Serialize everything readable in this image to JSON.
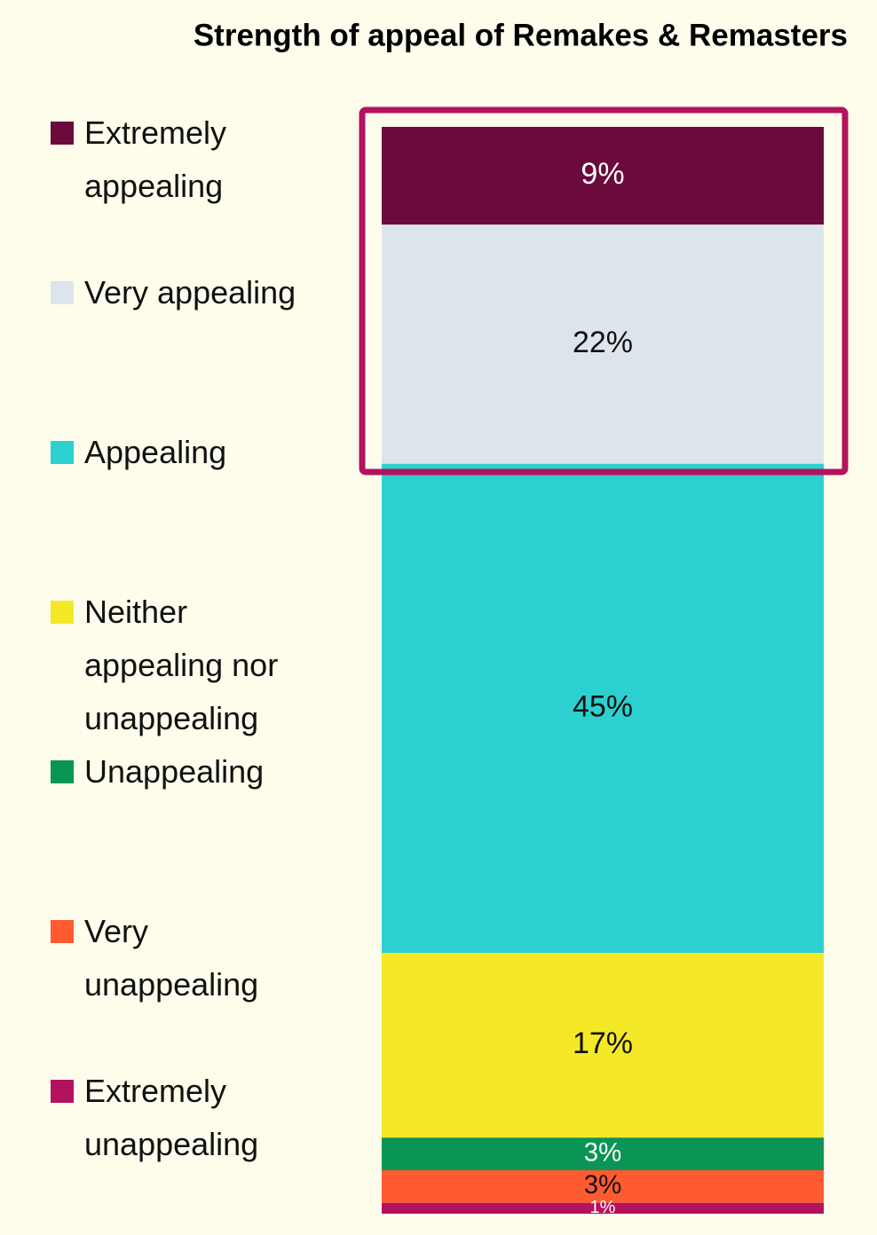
{
  "chart_data": {
    "type": "stacked-bar",
    "title": "Strength of appeal of Remakes & Remasters",
    "series": [
      {
        "name": "Extremely appealing",
        "color": "#6b0a3c",
        "values": [
          9
        ],
        "value_labels": [
          "9%"
        ]
      },
      {
        "name": "Very appealing",
        "color": "#dde5ec",
        "values": [
          22
        ],
        "value_labels": [
          "22%"
        ]
      },
      {
        "name": "Appealing",
        "color": "#2dd0d0",
        "values": [
          45
        ],
        "value_labels": [
          "45%"
        ]
      },
      {
        "name": "Neither appealing nor unappealing",
        "color": "#f5e826",
        "values": [
          17
        ],
        "value_labels": [
          "17%"
        ]
      },
      {
        "name": "Unappealing",
        "color": "#0a9455",
        "values": [
          3
        ],
        "value_labels": [
          "3%"
        ]
      },
      {
        "name": "Very unappealing",
        "color": "#ff5a30",
        "values": [
          3
        ],
        "value_labels": [
          "3%"
        ]
      },
      {
        "name": "Extremely unappealing",
        "color": "#b3125f",
        "values": [
          1
        ],
        "value_labels": [
          "1%"
        ]
      }
    ]
  }
}
